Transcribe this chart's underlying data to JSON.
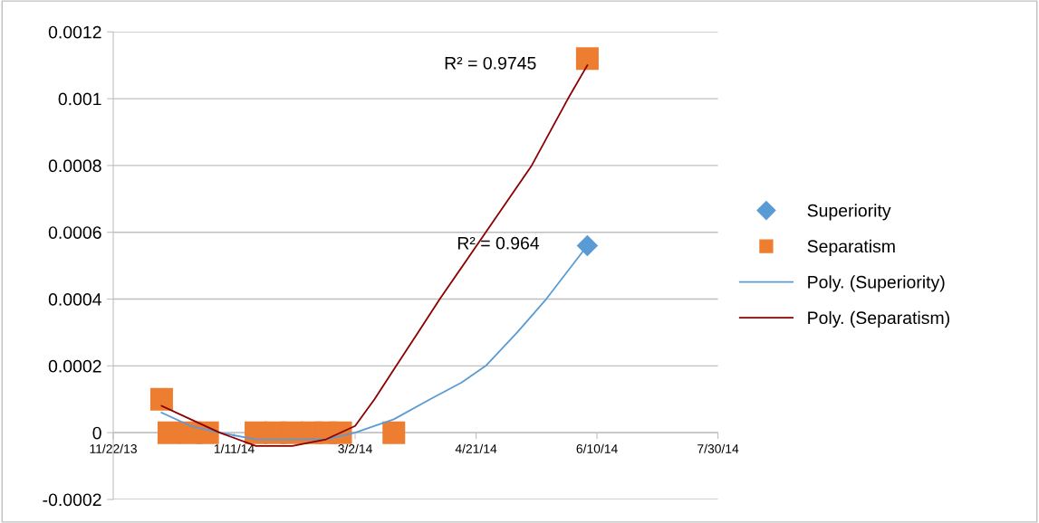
{
  "chart_data": {
    "type": "scatter",
    "series": [
      {
        "name": "Superiority",
        "marker": "diamond",
        "color": "#5b9bd5",
        "x": [
          "2014-06-06"
        ],
        "values": [
          0.00056
        ]
      },
      {
        "name": "Separatism",
        "marker": "square",
        "color": "#ed7d31",
        "x": [
          "2013-12-12",
          "2013-12-15",
          "2013-12-24",
          "2013-12-31",
          "2014-01-20",
          "2014-01-28",
          "2014-02-04",
          "2014-02-12",
          "2014-02-18",
          "2014-02-24",
          "2014-03-18",
          "2014-06-06"
        ],
        "values": [
          0.0001,
          0,
          0,
          0,
          0,
          0,
          0,
          0,
          0,
          0,
          0,
          0.00112
        ]
      },
      {
        "name": "Poly. (Superiority)",
        "type": "line",
        "marker": "none",
        "color": "#5b9bd5",
        "x": [
          "2013-12-12",
          "2013-12-24",
          "2014-01-05",
          "2014-01-20",
          "2014-02-04",
          "2014-02-18",
          "2014-03-02",
          "2014-03-18",
          "2014-04-02",
          "2014-04-15",
          "2014-04-25",
          "2014-05-08",
          "2014-05-20",
          "2014-06-06"
        ],
        "values": [
          6e-05,
          2e-05,
          0,
          -2e-05,
          -2e-05,
          -2e-05,
          0,
          4e-05,
          0.0001,
          0.00015,
          0.0002,
          0.0003,
          0.0004,
          0.00056
        ]
      },
      {
        "name": "Poly. (Separatism)",
        "type": "line",
        "marker": "none",
        "color": "#8b0000",
        "x": [
          "2013-12-12",
          "2013-12-24",
          "2014-01-05",
          "2014-01-20",
          "2014-02-04",
          "2014-02-18",
          "2014-03-02",
          "2014-03-10",
          "2014-03-19",
          "2014-03-28",
          "2014-04-06",
          "2014-04-25",
          "2014-05-14",
          "2014-05-29",
          "2014-06-06"
        ],
        "values": [
          8e-05,
          4e-05,
          0,
          -4e-05,
          -4e-05,
          -2e-05,
          2e-05,
          0.0001,
          0.0002,
          0.0003,
          0.0004,
          0.0006,
          0.0008,
          0.001,
          0.0011
        ]
      }
    ],
    "xlim": [
      "2013-11-22",
      "2014-07-30"
    ],
    "xticks": [
      {
        "value": "2013-11-22",
        "label": "11/22/13"
      },
      {
        "value": "2014-01-11",
        "label": "1/11/14"
      },
      {
        "value": "2014-03-02",
        "label": "3/2/14"
      },
      {
        "value": "2014-04-21",
        "label": "4/21/14"
      },
      {
        "value": "2014-06-10",
        "label": "6/10/14"
      },
      {
        "value": "2014-07-30",
        "label": "7/30/14"
      }
    ],
    "ylim": [
      -0.0002,
      0.0012
    ],
    "yticks": [
      -0.0002,
      0,
      0.0002,
      0.0004,
      0.0006,
      0.0008,
      0.001,
      0.0012
    ],
    "annotations": [
      "R² = 0.9745",
      "R² = 0.964"
    ],
    "grid": "y",
    "legend": "right",
    "line_style": "solid"
  }
}
